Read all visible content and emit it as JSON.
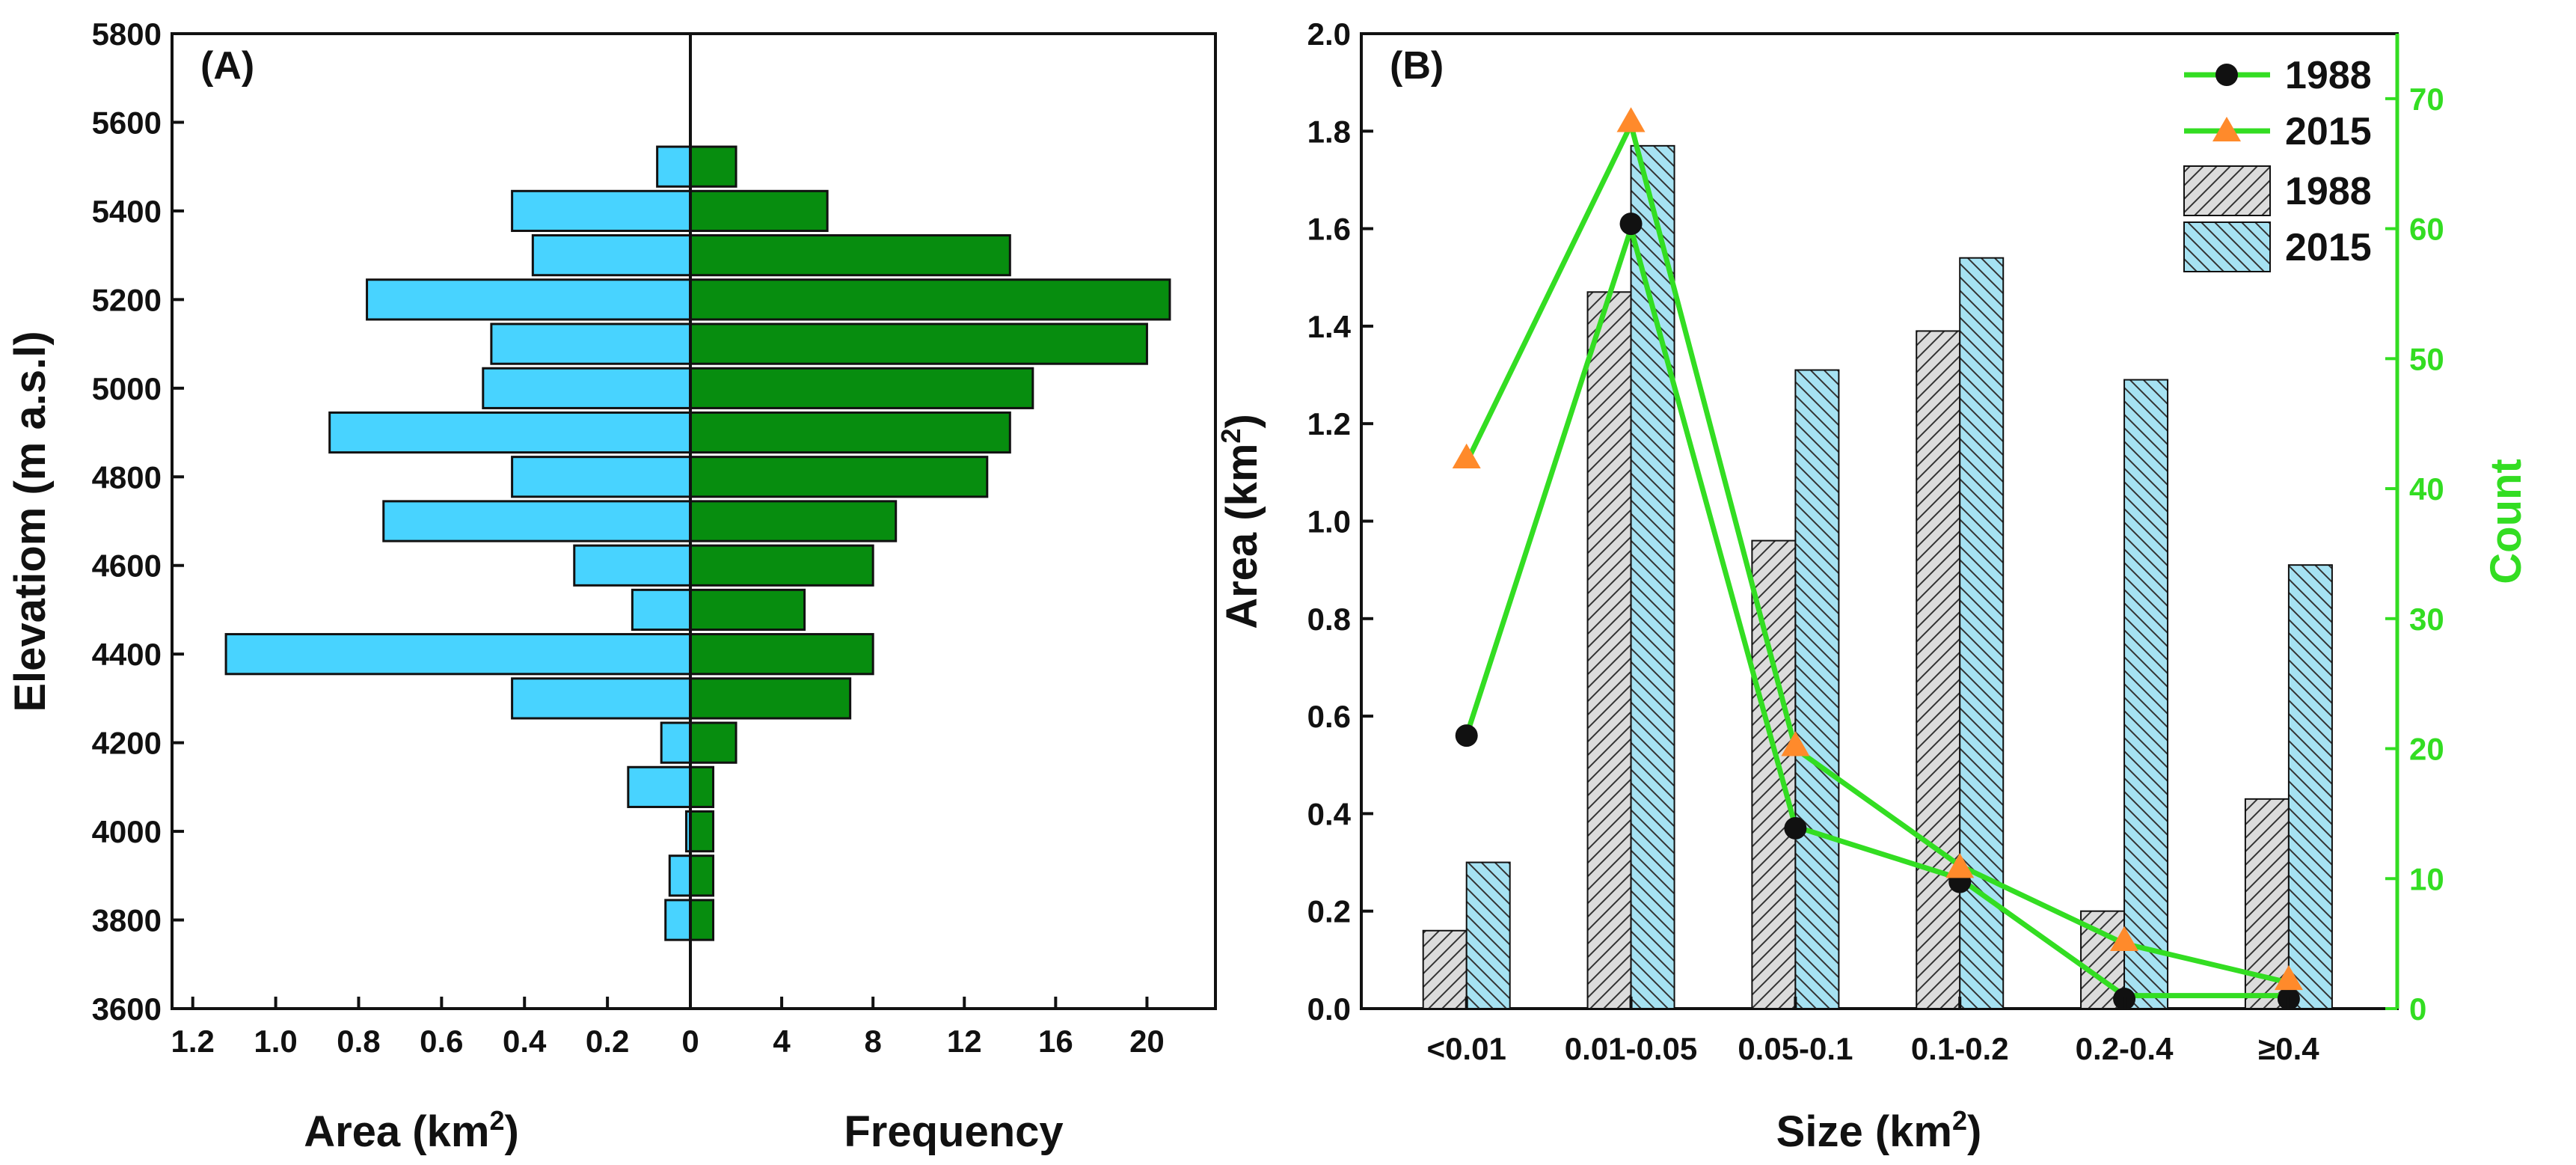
{
  "colors": {
    "area_bar": "#48d3ff",
    "frequency_bar": "#078d0f",
    "bar_1988": "#dcdcdc",
    "bar_2015": "#a6e2f2",
    "line": "#33dd22",
    "marker_1988": "#111111",
    "marker_2015": "#ff8a2b",
    "count_axis": "#33dd22"
  },
  "chart_data": [
    {
      "panel_label": "(A)",
      "type": "bar",
      "orientation": "horizontal-back-to-back",
      "ylabel": "Elevatiom (m a.s.l)",
      "xlabel_left_main": "Area (km",
      "xlabel_left_sup": "2",
      "xlabel_left_end": ")",
      "xlabel_right": "Frequency",
      "ylim": [
        3600,
        5800
      ],
      "yticks": [
        "3600",
        "3800",
        "4000",
        "4200",
        "4400",
        "4600",
        "4800",
        "5000",
        "5200",
        "5400",
        "5600",
        "5800"
      ],
      "left_xlim": [
        0,
        1.25
      ],
      "left_xticks": [
        "1.2",
        "1.0",
        "0.8",
        "0.6",
        "0.4",
        "0.2",
        "0"
      ],
      "right_xlim": [
        0,
        23
      ],
      "right_xticks": [
        "4",
        "8",
        "12",
        "16",
        "20"
      ],
      "bin_width": 100,
      "bins": [
        3800,
        3900,
        4000,
        4100,
        4200,
        4300,
        4400,
        4500,
        4600,
        4700,
        4800,
        4900,
        5000,
        5100,
        5200,
        5300,
        5400,
        5500
      ],
      "area_km2": [
        0.06,
        0.05,
        0.01,
        0.15,
        0.07,
        0.43,
        1.12,
        0.14,
        0.28,
        0.74,
        0.43,
        0.87,
        0.5,
        0.48,
        0.78,
        0.38,
        0.43,
        0.08
      ],
      "frequency": [
        1,
        1,
        1,
        1,
        2,
        7,
        8,
        5,
        8,
        9,
        13,
        14,
        15,
        20,
        21,
        14,
        6,
        2
      ]
    },
    {
      "panel_label": "(B)",
      "type": "bar",
      "xlabel_main": "Size (km",
      "xlabel_sup": "2",
      "xlabel_end": ")",
      "ylabel_main": "Area (km",
      "ylabel_sup": "2",
      "ylabel_end": ")",
      "y2label": "Count",
      "categories": [
        "<0.01",
        "0.01-0.05",
        "0.05-0.1",
        "0.1-0.2",
        "0.2-0.4",
        "≥0.4"
      ],
      "ylim": [
        0,
        2.0
      ],
      "yticks": [
        "0.0",
        "0.2",
        "0.4",
        "0.6",
        "0.8",
        "1.0",
        "1.2",
        "1.4",
        "1.6",
        "1.8",
        "2.0"
      ],
      "y2lim": [
        0,
        75
      ],
      "y2ticks": [
        "0",
        "10",
        "20",
        "30",
        "40",
        "50",
        "60",
        "70"
      ],
      "series": [
        {
          "name": "1988",
          "kind": "bar",
          "axis": "left",
          "values": [
            0.16,
            1.47,
            0.96,
            1.39,
            0.2,
            0.43
          ]
        },
        {
          "name": "2015",
          "kind": "bar",
          "axis": "left",
          "values": [
            0.3,
            1.77,
            1.31,
            1.54,
            1.29,
            0.91
          ]
        },
        {
          "name": "1988",
          "kind": "line",
          "axis": "left",
          "marker": "circle",
          "values": [
            0.56,
            1.61,
            0.37,
            0.26,
            0.02,
            0.02
          ]
        },
        {
          "name": "2015",
          "kind": "line",
          "axis": "left",
          "marker": "triangle",
          "values": [
            1.13,
            1.82,
            0.54,
            0.29,
            0.14,
            0.06
          ]
        }
      ],
      "count_line_path_axis": "right",
      "count_1988": [
        21,
        60,
        14,
        10,
        1,
        1
      ],
      "count_2015": [
        42,
        68,
        20,
        11,
        5,
        2
      ],
      "legend": [
        "1988",
        "2015",
        "1988",
        "2015"
      ],
      "legend_position": "top-right"
    }
  ]
}
